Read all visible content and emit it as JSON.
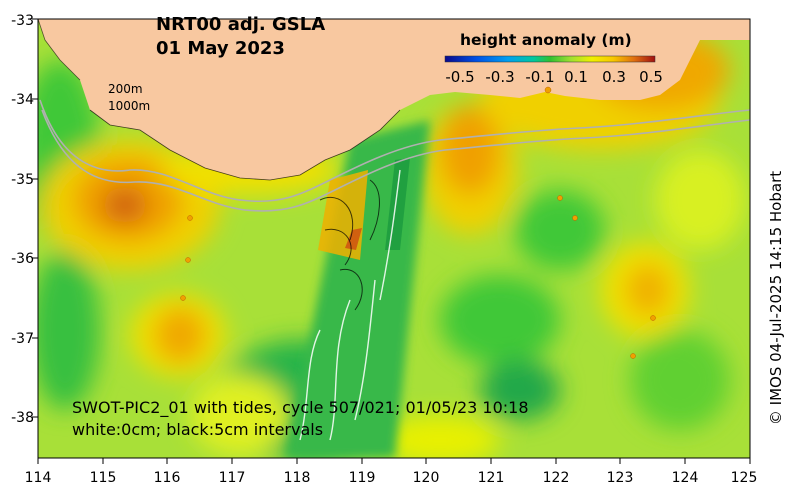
{
  "title": {
    "line1": "NRT00 adj. GSLA",
    "line2": "01 May 2023"
  },
  "legend": {
    "title": "height anomaly (m)",
    "ticks": [
      "-0.5",
      "-0.3",
      "-0.1",
      "0.1",
      "0.3",
      "0.5"
    ],
    "colors": [
      "#0a0a8c",
      "#0050e6",
      "#00a0f0",
      "#00c8a0",
      "#30c030",
      "#a0e030",
      "#f0f000",
      "#f8c800",
      "#f09010",
      "#d85010",
      "#a01010"
    ]
  },
  "depth_labels": {
    "d200": "200m",
    "d1000": "1000m"
  },
  "annotation": {
    "line1": "SWOT-PIC2_01 with tides, cycle 507/021; 01/05/23 10:18",
    "line2": "white:0cm; black:5cm intervals"
  },
  "axes": {
    "x_ticks": [
      "114",
      "115",
      "116",
      "117",
      "118",
      "119",
      "120",
      "121",
      "122",
      "123",
      "124",
      "125"
    ],
    "y_ticks": [
      "-33",
      "-34",
      "-35",
      "-36",
      "-37",
      "-38"
    ]
  },
  "credit": "© IMOS 04-Jul-2025 14:15 Hobart",
  "palette": {
    "land": "#f8c8a0",
    "base_field": "#a8e038"
  }
}
